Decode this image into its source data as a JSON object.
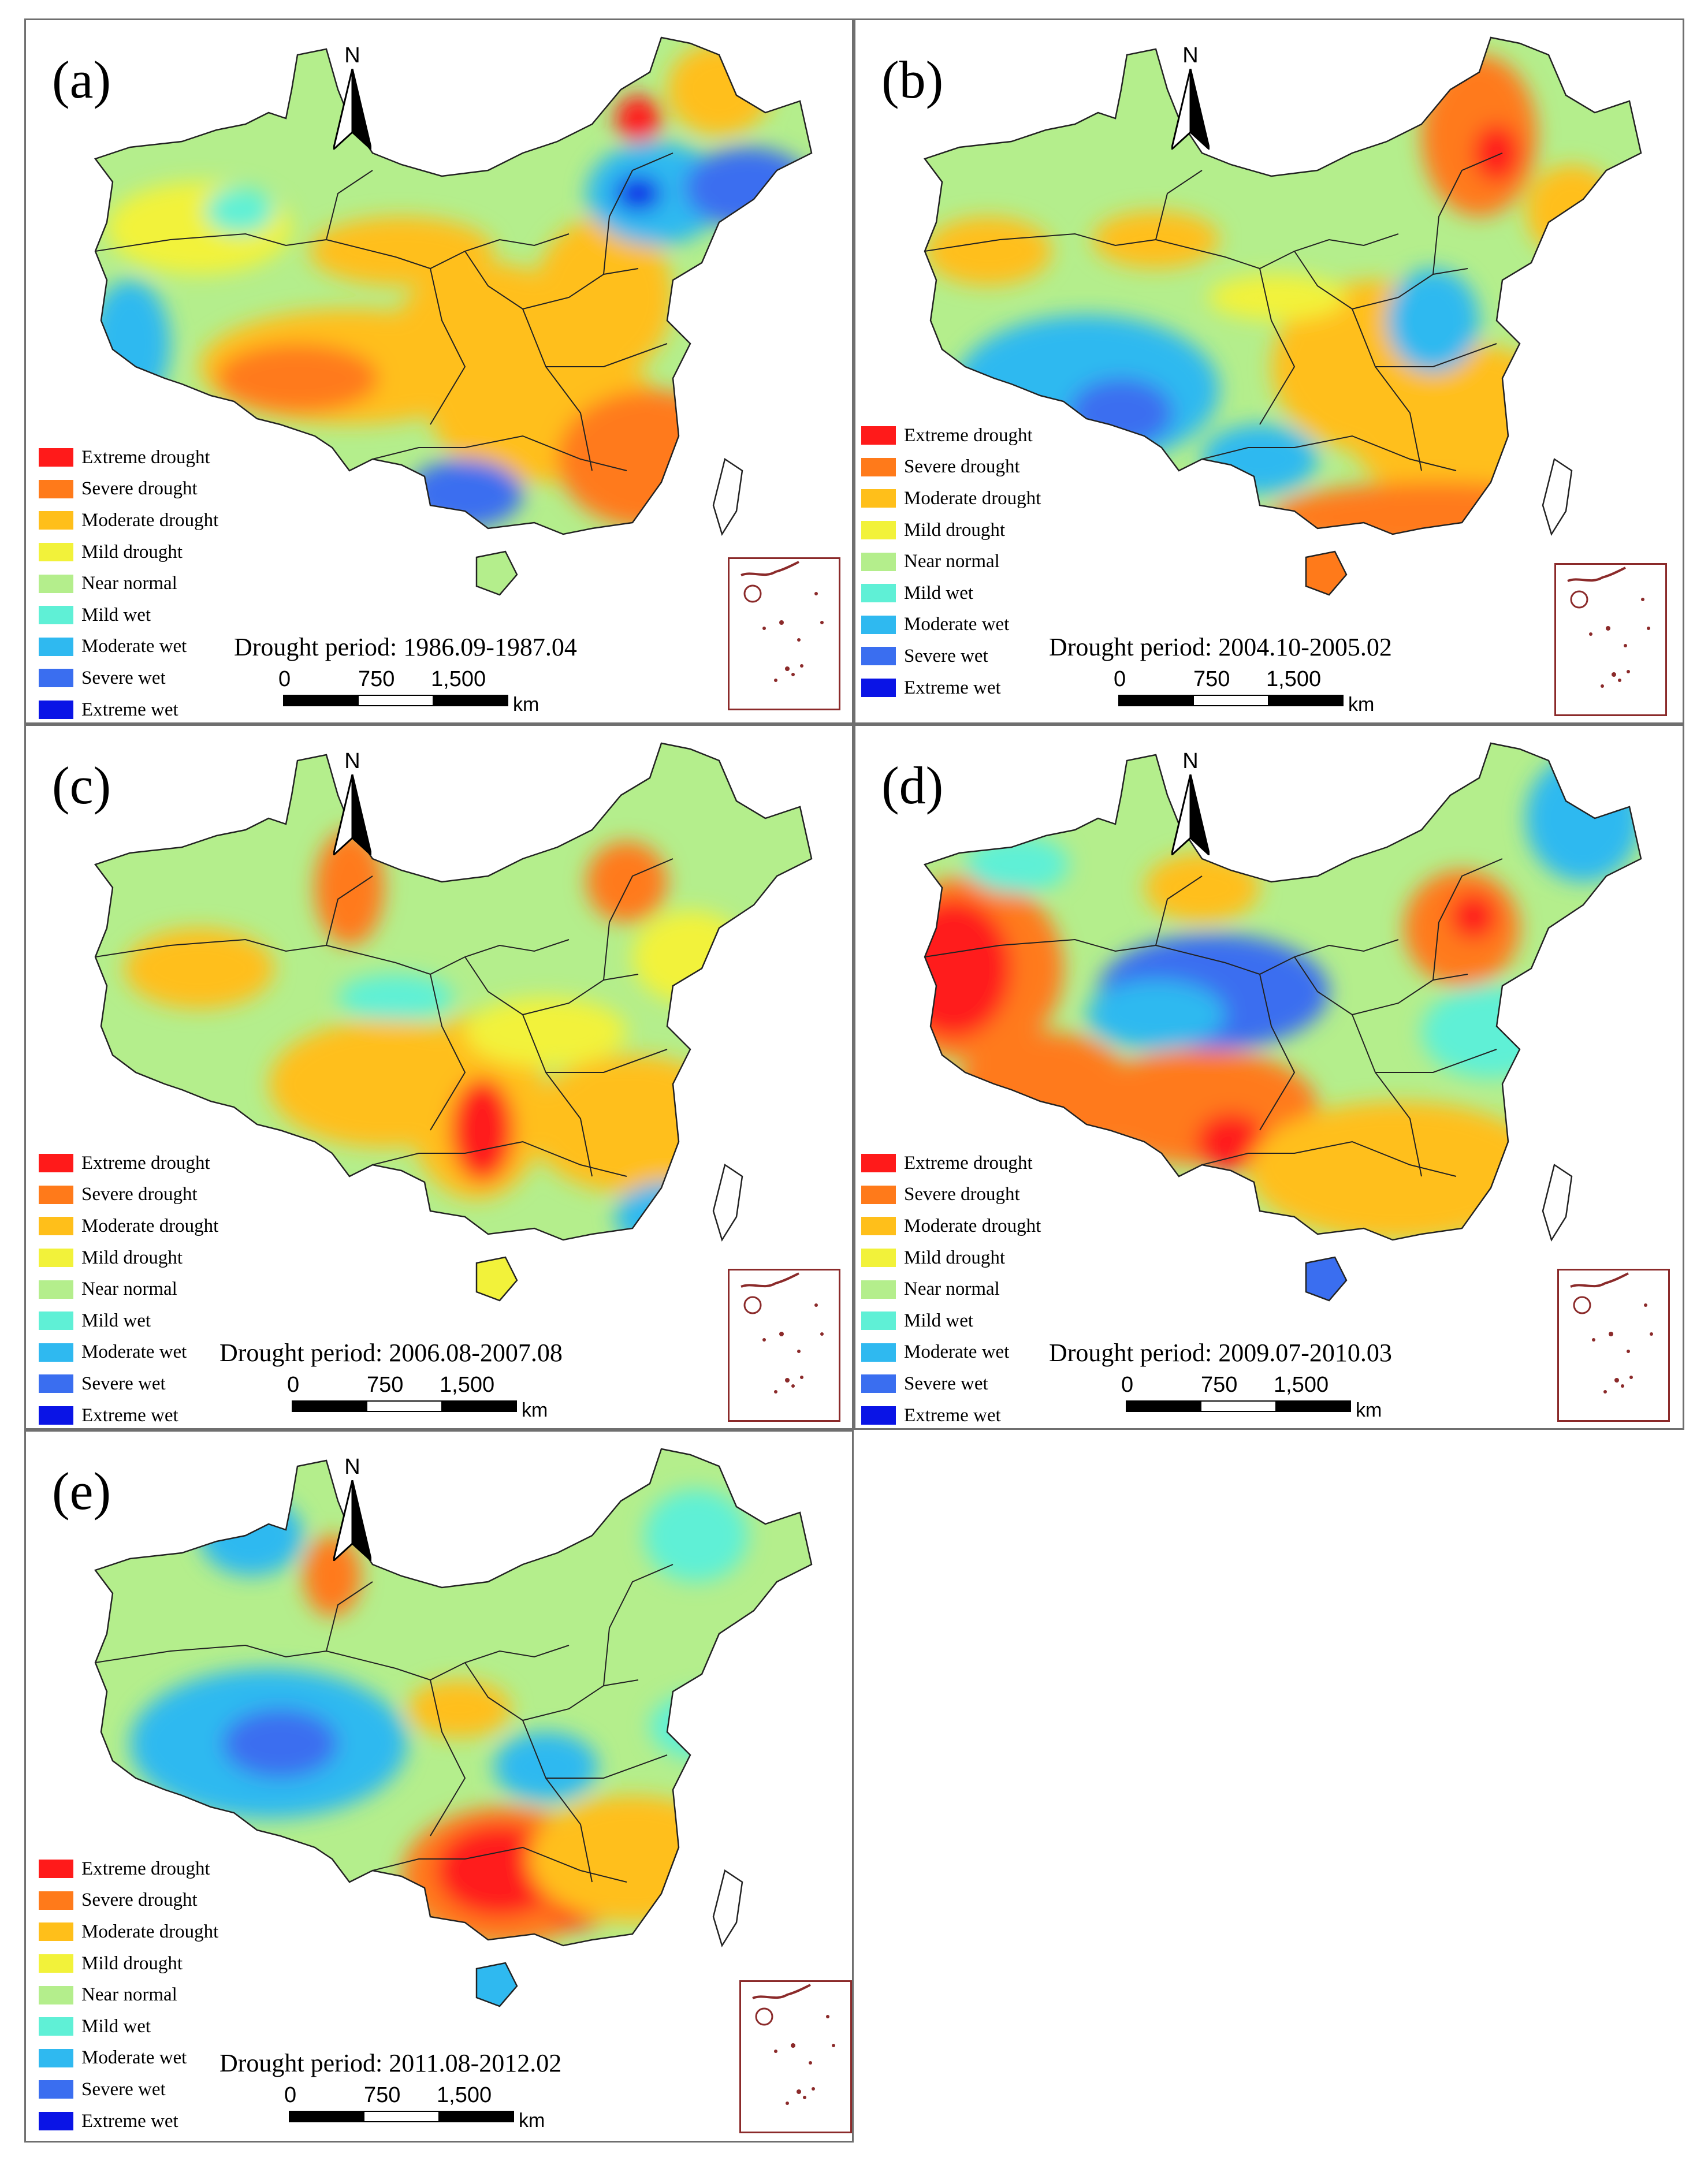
{
  "legend": {
    "items": [
      {
        "label": "Extreme drought",
        "color": "#ff1a1a"
      },
      {
        "label": "Severe drought",
        "color": "#ff7a1a"
      },
      {
        "label": "Moderate drought",
        "color": "#ffbf1a"
      },
      {
        "label": "Mild drought",
        "color": "#f2f23a"
      },
      {
        "label": "Near normal",
        "color": "#b4ee8c"
      },
      {
        "label": "Mild wet",
        "color": "#5ff0d6"
      },
      {
        "label": "Moderate wet",
        "color": "#2fb9f0"
      },
      {
        "label": "Severe wet",
        "color": "#3a6ef0"
      },
      {
        "label": "Extreme wet",
        "color": "#0a14e6"
      }
    ]
  },
  "north_label": "N",
  "scale": {
    "ticks": [
      "0",
      "750",
      "1,500"
    ],
    "unit": "km"
  },
  "panels": [
    {
      "label": "(a)",
      "period": "Drought period: 1986.09-1987.04"
    },
    {
      "label": "(b)",
      "period": "Drought period: 2004.10-2005.02"
    },
    {
      "label": "(c)",
      "period": "Drought period: 2006.08-2007.08"
    },
    {
      "label": "(d)",
      "period": "Drought period: 2009.07-2010.03"
    },
    {
      "label": "(e)",
      "period": "Drought period: 2011.08-2012.02"
    }
  ]
}
